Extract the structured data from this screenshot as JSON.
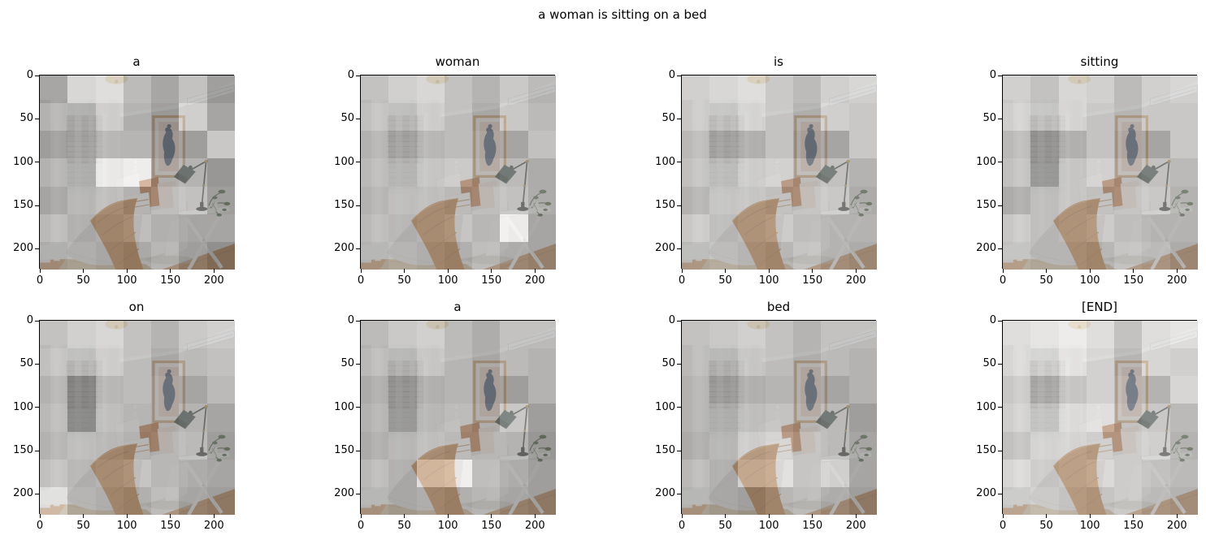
{
  "figure": {
    "suptitle": "a woman is sitting on a bed"
  },
  "chart_data": {
    "type": "heatmap",
    "title": "a woman is sitting on a bed",
    "subplot_grid": {
      "rows": 2,
      "cols": 4
    },
    "tokens": [
      "a",
      "woman",
      "is",
      "sitting",
      "on",
      "a",
      "bed",
      "[END]"
    ],
    "xticks": [
      0,
      50,
      100,
      150,
      200
    ],
    "yticks": [
      0,
      50,
      100,
      150,
      200
    ],
    "x_range": [
      0,
      224
    ],
    "y_range": [
      0,
      224
    ],
    "attention_grid_size": 7,
    "overlay_alpha": 0.55,
    "image": {
      "description": "bedroom photo: bed with light duvet and caramel throw, white and rust pillows, framed artwork of a woman above the bed, sheer-curtained window with venetian blinds at left, white folding side table with dark desk lamp and trailing plant at right, timber floor with jute rug",
      "palette": {
        "wall": "#e9e7e3",
        "ceiling": "#f5f4f1",
        "duvet": "#dbd8d2",
        "throw": "#b87c44",
        "rust_pillow": "#b17040",
        "floor_wood": "#c69668",
        "rug": "#cdb795",
        "frame": "#c79f72",
        "art_figure": "#4e5d72",
        "lamp_shade": "#46534c"
      }
    },
    "series": [
      {
        "token": "a",
        "attention": [
          [
            0.4,
            0.75,
            0.8,
            0.55,
            0.4,
            0.6,
            0.35
          ],
          [
            0.55,
            0.5,
            0.7,
            0.5,
            0.35,
            0.75,
            0.45
          ],
          [
            0.4,
            0.45,
            0.55,
            0.55,
            0.4,
            0.4,
            0.7
          ],
          [
            0.55,
            0.5,
            0.9,
            0.95,
            0.5,
            0.55,
            0.35
          ],
          [
            0.45,
            0.55,
            0.6,
            0.5,
            0.6,
            0.65,
            0.4
          ],
          [
            0.6,
            0.5,
            0.55,
            0.6,
            0.5,
            0.45,
            0.45
          ],
          [
            0.5,
            0.55,
            0.5,
            0.45,
            0.55,
            0.4,
            0.3
          ]
        ]
      },
      {
        "token": "woman",
        "attention": [
          [
            0.6,
            0.7,
            0.75,
            0.6,
            0.5,
            0.65,
            0.55
          ],
          [
            0.65,
            0.6,
            0.7,
            0.6,
            0.45,
            0.7,
            0.6
          ],
          [
            0.55,
            0.45,
            0.55,
            0.6,
            0.5,
            0.45,
            0.65
          ],
          [
            0.6,
            0.55,
            0.65,
            0.7,
            0.55,
            0.6,
            0.5
          ],
          [
            0.55,
            0.6,
            0.6,
            0.55,
            0.6,
            0.65,
            0.5
          ],
          [
            0.6,
            0.55,
            0.6,
            0.65,
            0.55,
            0.95,
            0.45
          ],
          [
            0.55,
            0.6,
            0.55,
            0.5,
            0.6,
            0.5,
            0.45
          ]
        ]
      },
      {
        "token": "is",
        "attention": [
          [
            0.7,
            0.75,
            0.8,
            0.65,
            0.55,
            0.7,
            0.75
          ],
          [
            0.7,
            0.65,
            0.75,
            0.65,
            0.5,
            0.75,
            0.7
          ],
          [
            0.6,
            0.45,
            0.5,
            0.65,
            0.45,
            0.45,
            0.7
          ],
          [
            0.65,
            0.6,
            0.7,
            0.75,
            0.6,
            0.65,
            0.55
          ],
          [
            0.55,
            0.65,
            0.65,
            0.6,
            0.65,
            0.7,
            0.5
          ],
          [
            0.7,
            0.6,
            0.65,
            0.7,
            0.6,
            0.55,
            0.55
          ],
          [
            0.6,
            0.65,
            0.6,
            0.55,
            0.65,
            0.55,
            0.5
          ]
        ]
      },
      {
        "token": "sitting",
        "attention": [
          [
            0.7,
            0.6,
            0.75,
            0.7,
            0.55,
            0.7,
            0.75
          ],
          [
            0.75,
            0.65,
            0.75,
            0.65,
            0.55,
            0.7,
            0.7
          ],
          [
            0.6,
            0.35,
            0.5,
            0.65,
            0.5,
            0.45,
            0.7
          ],
          [
            0.65,
            0.35,
            0.65,
            0.75,
            0.6,
            0.65,
            0.6
          ],
          [
            0.5,
            0.6,
            0.65,
            0.6,
            0.65,
            0.7,
            0.55
          ],
          [
            0.7,
            0.6,
            0.65,
            0.7,
            0.6,
            0.55,
            0.55
          ],
          [
            0.65,
            0.6,
            0.6,
            0.55,
            0.65,
            0.6,
            0.5
          ]
        ]
      },
      {
        "token": "on",
        "attention": [
          [
            0.6,
            0.7,
            0.75,
            0.6,
            0.5,
            0.65,
            0.7
          ],
          [
            0.65,
            0.6,
            0.7,
            0.6,
            0.45,
            0.6,
            0.65
          ],
          [
            0.55,
            0.25,
            0.55,
            0.6,
            0.5,
            0.45,
            0.6
          ],
          [
            0.6,
            0.25,
            0.6,
            0.55,
            0.5,
            0.55,
            0.45
          ],
          [
            0.55,
            0.6,
            0.55,
            0.5,
            0.55,
            0.6,
            0.4
          ],
          [
            0.65,
            0.55,
            0.6,
            0.65,
            0.55,
            0.5,
            0.45
          ],
          [
            0.85,
            0.6,
            0.55,
            0.5,
            0.6,
            0.45,
            0.4
          ]
        ]
      },
      {
        "token": "a",
        "attention": [
          [
            0.55,
            0.65,
            0.7,
            0.55,
            0.45,
            0.6,
            0.6
          ],
          [
            0.6,
            0.55,
            0.65,
            0.55,
            0.45,
            0.6,
            0.55
          ],
          [
            0.5,
            0.35,
            0.5,
            0.55,
            0.45,
            0.4,
            0.55
          ],
          [
            0.55,
            0.35,
            0.55,
            0.6,
            0.5,
            0.7,
            0.4
          ],
          [
            0.5,
            0.55,
            0.6,
            0.55,
            0.55,
            0.55,
            0.35
          ],
          [
            0.6,
            0.5,
            0.9,
            0.95,
            0.6,
            0.5,
            0.4
          ],
          [
            0.55,
            0.5,
            0.55,
            0.5,
            0.55,
            0.45,
            0.4
          ]
        ]
      },
      {
        "token": "bed",
        "attention": [
          [
            0.6,
            0.65,
            0.7,
            0.6,
            0.5,
            0.6,
            0.6
          ],
          [
            0.6,
            0.55,
            0.65,
            0.6,
            0.5,
            0.6,
            0.55
          ],
          [
            0.55,
            0.4,
            0.5,
            0.55,
            0.5,
            0.45,
            0.55
          ],
          [
            0.55,
            0.5,
            0.6,
            0.65,
            0.55,
            0.6,
            0.4
          ],
          [
            0.5,
            0.55,
            0.7,
            0.75,
            0.65,
            0.6,
            0.45
          ],
          [
            0.6,
            0.5,
            0.8,
            0.85,
            0.65,
            0.75,
            0.45
          ],
          [
            0.55,
            0.5,
            0.45,
            0.55,
            0.6,
            0.5,
            0.4
          ]
        ]
      },
      {
        "token": "[END]",
        "attention": [
          [
            0.8,
            0.85,
            0.9,
            0.8,
            0.6,
            0.8,
            0.85
          ],
          [
            0.8,
            0.75,
            0.85,
            0.75,
            0.55,
            0.8,
            0.75
          ],
          [
            0.7,
            0.5,
            0.65,
            0.75,
            0.6,
            0.55,
            0.8
          ],
          [
            0.75,
            0.65,
            0.8,
            0.85,
            0.65,
            0.7,
            0.6
          ],
          [
            0.65,
            0.75,
            0.75,
            0.7,
            0.7,
            0.75,
            0.55
          ],
          [
            0.8,
            0.7,
            0.75,
            0.8,
            0.7,
            0.65,
            0.6
          ],
          [
            0.7,
            0.75,
            0.7,
            0.65,
            0.7,
            0.6,
            0.55
          ]
        ]
      }
    ]
  }
}
